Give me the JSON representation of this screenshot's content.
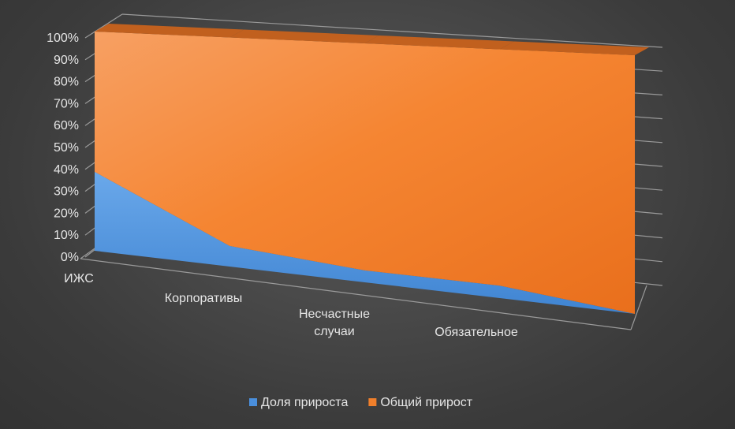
{
  "chart_data": {
    "type": "area",
    "stacked": "100%",
    "view": "3d-perspective",
    "categories": [
      "ИЖС",
      "Корпоративы",
      [
        "Несчастные",
        "случаи"
      ],
      "Обязательное",
      ""
    ],
    "y_ticks": [
      "0%",
      "10%",
      "20%",
      "30%",
      "40%",
      "50%",
      "60%",
      "70%",
      "80%",
      "90%",
      "100%"
    ],
    "ylim": [
      0,
      100
    ],
    "series": [
      {
        "name": "Доля прироста",
        "color": "#4a8fdc",
        "values": [
          36,
          9,
          5,
          5,
          0
        ]
      },
      {
        "name": "Общий прирост",
        "color": "#f07f2b",
        "values": [
          64,
          91,
          95,
          95,
          100
        ]
      }
    ],
    "legend_position": "bottom",
    "grid": true
  }
}
